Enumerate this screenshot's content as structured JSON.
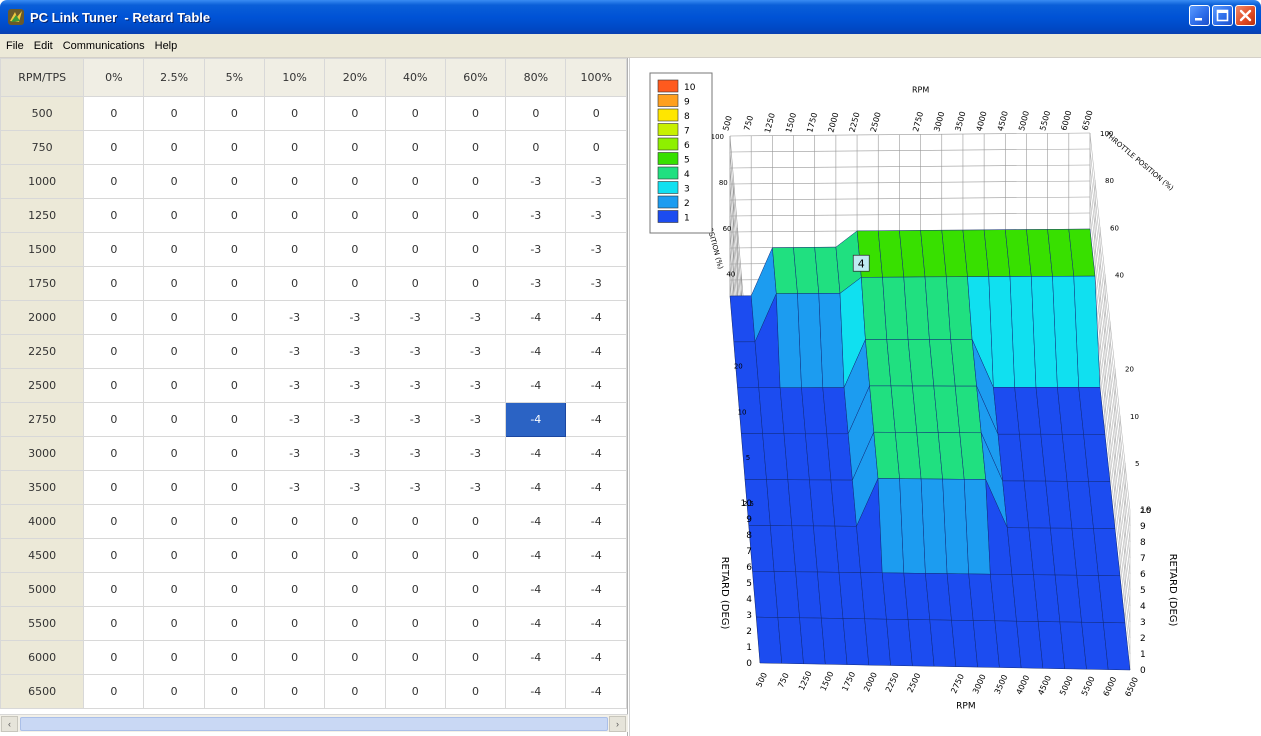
{
  "window": {
    "title": "PC Link Tuner  - Retard Table"
  },
  "icons": {
    "app": "app-logo-icon",
    "minimize": "minimize-icon",
    "maximize": "maximize-icon",
    "close": "close-icon"
  },
  "menu": {
    "items": [
      "File",
      "Edit",
      "Communications",
      "Help"
    ]
  },
  "table": {
    "corner_label": "RPM/TPS",
    "columns": [
      "0%",
      "2.5%",
      "5%",
      "10%",
      "20%",
      "40%",
      "60%",
      "80%",
      "100%"
    ],
    "rows": [
      {
        "rpm": "500",
        "values": [
          "0",
          "0",
          "0",
          "0",
          "0",
          "0",
          "0",
          "0",
          "0"
        ]
      },
      {
        "rpm": "750",
        "values": [
          "0",
          "0",
          "0",
          "0",
          "0",
          "0",
          "0",
          "0",
          "0"
        ]
      },
      {
        "rpm": "1000",
        "values": [
          "0",
          "0",
          "0",
          "0",
          "0",
          "0",
          "0",
          "-3",
          "-3"
        ]
      },
      {
        "rpm": "1250",
        "values": [
          "0",
          "0",
          "0",
          "0",
          "0",
          "0",
          "0",
          "-3",
          "-3"
        ]
      },
      {
        "rpm": "1500",
        "values": [
          "0",
          "0",
          "0",
          "0",
          "0",
          "0",
          "0",
          "-3",
          "-3"
        ]
      },
      {
        "rpm": "1750",
        "values": [
          "0",
          "0",
          "0",
          "0",
          "0",
          "0",
          "0",
          "-3",
          "-3"
        ]
      },
      {
        "rpm": "2000",
        "values": [
          "0",
          "0",
          "0",
          "-3",
          "-3",
          "-3",
          "-3",
          "-4",
          "-4"
        ]
      },
      {
        "rpm": "2250",
        "values": [
          "0",
          "0",
          "0",
          "-3",
          "-3",
          "-3",
          "-3",
          "-4",
          "-4"
        ]
      },
      {
        "rpm": "2500",
        "values": [
          "0",
          "0",
          "0",
          "-3",
          "-3",
          "-3",
          "-3",
          "-4",
          "-4"
        ]
      },
      {
        "rpm": "2750",
        "values": [
          "0",
          "0",
          "0",
          "-3",
          "-3",
          "-3",
          "-3",
          "-4",
          "-4"
        ]
      },
      {
        "rpm": "3000",
        "values": [
          "0",
          "0",
          "0",
          "-3",
          "-3",
          "-3",
          "-3",
          "-4",
          "-4"
        ]
      },
      {
        "rpm": "3500",
        "values": [
          "0",
          "0",
          "0",
          "-3",
          "-3",
          "-3",
          "-3",
          "-4",
          "-4"
        ]
      },
      {
        "rpm": "4000",
        "values": [
          "0",
          "0",
          "0",
          "0",
          "0",
          "0",
          "0",
          "-4",
          "-4"
        ]
      },
      {
        "rpm": "4500",
        "values": [
          "0",
          "0",
          "0",
          "0",
          "0",
          "0",
          "0",
          "-4",
          "-4"
        ]
      },
      {
        "rpm": "5000",
        "values": [
          "0",
          "0",
          "0",
          "0",
          "0",
          "0",
          "0",
          "-4",
          "-4"
        ]
      },
      {
        "rpm": "5500",
        "values": [
          "0",
          "0",
          "0",
          "0",
          "0",
          "0",
          "0",
          "-4",
          "-4"
        ]
      },
      {
        "rpm": "6000",
        "values": [
          "0",
          "0",
          "0",
          "0",
          "0",
          "0",
          "0",
          "-4",
          "-4"
        ]
      },
      {
        "rpm": "6500",
        "values": [
          "0",
          "0",
          "0",
          "0",
          "0",
          "0",
          "0",
          "-4",
          "-4"
        ]
      }
    ],
    "selected_cell": {
      "row": 9,
      "col": 7
    }
  },
  "scrollbar": {
    "left_arrow": "‹",
    "right_arrow": "›"
  },
  "chart": {
    "legend": [
      {
        "label": "10",
        "color": "#ff5a1e"
      },
      {
        "label": "9",
        "color": "#ffa01e"
      },
      {
        "label": "8",
        "color": "#ffe600"
      },
      {
        "label": "7",
        "color": "#c8f000"
      },
      {
        "label": "6",
        "color": "#8ef000"
      },
      {
        "label": "5",
        "color": "#38e000"
      },
      {
        "label": "4",
        "color": "#20e080"
      },
      {
        "label": "3",
        "color": "#10e0f0"
      },
      {
        "label": "2",
        "color": "#1c9cf0"
      },
      {
        "label": "1",
        "color": "#1c4cf0"
      }
    ],
    "rpm_ticks": [
      "500",
      "750",
      "1250",
      "1500",
      "1750",
      "2000",
      "2250",
      "2500",
      "2750",
      "3000",
      "3500",
      "4000",
      "4500",
      "5000",
      "5500",
      "6000",
      "6500"
    ],
    "rpm_label": "RPM",
    "tps_label": "THROTTLE POSITION (%)",
    "retard_label": "RETARD (DEG)",
    "retard_ticks": [
      "0",
      "1",
      "2",
      "3",
      "4",
      "5",
      "6",
      "7",
      "8",
      "9",
      "10"
    ],
    "tps_ticks": [
      "100",
      "80",
      "60",
      "40",
      "20",
      "10",
      "5",
      "2.5"
    ],
    "tooltip": "4"
  }
}
